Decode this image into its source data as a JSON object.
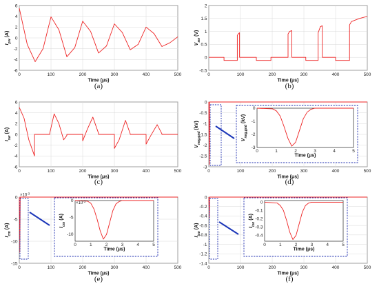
{
  "figure": {
    "panels": [
      "(a)",
      "(b)",
      "(c)",
      "(d)",
      "(e)",
      "(f)"
    ]
  },
  "colors": {
    "trace": "#ee2222",
    "inset_border": "#1f2fb0",
    "arrow": "#1a35b8"
  },
  "chart_data": [
    {
      "id": "a",
      "type": "line",
      "panel_label": "(a)",
      "xlabel": "Time (μs)",
      "ylabel": "I_pw (A)",
      "ylabel_var": "I",
      "ylabel_sub": "pw",
      "ylabel_unit": "(A)",
      "xlim": [
        0,
        500
      ],
      "ylim": [
        -6,
        6
      ],
      "xticks": [
        0,
        100,
        200,
        300,
        400,
        500
      ],
      "yticks": [
        -6,
        -4,
        -2,
        0,
        2,
        4,
        6
      ],
      "grid": true,
      "series": [
        {
          "x": [
            0,
            25,
            50,
            75,
            100,
            125,
            150,
            175,
            200,
            225,
            250,
            275,
            300,
            325,
            350,
            375,
            400,
            425,
            450,
            475,
            500
          ],
          "y": [
            5.5,
            -1.2,
            -4.4,
            -2.0,
            3.9,
            1.5,
            -3.5,
            -1.8,
            3.1,
            1.2,
            -2.8,
            -1.5,
            2.6,
            1.0,
            -2.2,
            -1.2,
            2.0,
            0.8,
            -1.6,
            -0.9,
            0.2
          ]
        }
      ]
    },
    {
      "id": "b",
      "type": "line",
      "panel_label": "(b)",
      "xlabel": "Time (μs)",
      "ylabel": "V_sw (V)",
      "ylabel_var": "V",
      "ylabel_sub": "sw",
      "ylabel_unit": "(V)",
      "xlim": [
        0,
        500
      ],
      "ylim": [
        -0.5,
        2
      ],
      "xticks": [
        0,
        100,
        200,
        300,
        400,
        500
      ],
      "yticks": [
        -0.5,
        0,
        0.5,
        1,
        1.5,
        2
      ],
      "grid": true,
      "series": [
        {
          "x": [
            0,
            48,
            48,
            90,
            90,
            94,
            97,
            97,
            150,
            150,
            196,
            196,
            250,
            250,
            255,
            262,
            262,
            306,
            306,
            345,
            345,
            352,
            358,
            358,
            400,
            400,
            444,
            444,
            450,
            475,
            500
          ],
          "y": [
            0,
            0,
            -0.12,
            -0.12,
            0.85,
            0.92,
            0.95,
            0,
            0,
            -0.12,
            -0.12,
            0,
            0,
            0.9,
            1.0,
            1.03,
            0,
            0,
            -0.12,
            -0.12,
            0.95,
            1.18,
            1.22,
            0,
            0,
            -0.12,
            -0.12,
            1.25,
            1.38,
            1.5,
            1.58
          ]
        }
      ]
    },
    {
      "id": "c",
      "type": "line",
      "panel_label": "(c)",
      "xlabel": "Time (μs)",
      "ylabel": "I_sw (A)",
      "ylabel_var": "I",
      "ylabel_sub": "sw",
      "ylabel_unit": "(A)",
      "xlim": [
        0,
        500
      ],
      "ylim": [
        -6,
        6
      ],
      "xticks": [
        0,
        100,
        200,
        300,
        400,
        500
      ],
      "yticks": [
        -6,
        -4,
        -2,
        0,
        2,
        4,
        6
      ],
      "grid": true,
      "series": [
        {
          "x": [
            0,
            15,
            30,
            48,
            48,
            96,
            96,
            110,
            125,
            140,
            150,
            150,
            200,
            200,
            215,
            232,
            250,
            250,
            300,
            300,
            315,
            335,
            350,
            350,
            400,
            400,
            415,
            435,
            450,
            450,
            500
          ],
          "y": [
            5.0,
            3.0,
            -1.0,
            -4.0,
            0,
            0,
            0.2,
            3.8,
            2.0,
            -1.0,
            -0.2,
            0,
            0,
            -1.2,
            1.0,
            3.2,
            0.2,
            0,
            0,
            -2.6,
            -1.0,
            2.6,
            0.1,
            0,
            0,
            -1.8,
            -0.2,
            1.8,
            0.1,
            0,
            0
          ]
        }
      ]
    },
    {
      "id": "d",
      "type": "line",
      "panel_label": "(d)",
      "xlabel": "Time (μs)",
      "ylabel": "V_neg,gnd (kV)",
      "ylabel_var": "V",
      "ylabel_sub": "neg,gnd",
      "ylabel_unit": "(kV)",
      "xlim": [
        0,
        500
      ],
      "ylim": [
        -3,
        0
      ],
      "xticks": [
        0,
        100,
        200,
        300,
        400,
        500
      ],
      "yticks": [
        -3,
        -2.5,
        -2,
        -1.5,
        -1,
        -0.5,
        0
      ],
      "grid": true,
      "series": [
        {
          "x": [
            0,
            1,
            1.5,
            2,
            3,
            500
          ],
          "y": [
            0,
            -2.0,
            -2.9,
            -2.0,
            0,
            0
          ]
        }
      ],
      "inset": {
        "ylabel": "V_neg,gnd (kV)",
        "ylabel_var": "V",
        "ylabel_sub": "neg,gnd",
        "ylabel_unit": "(kV)",
        "xlabel": "Time (μs)",
        "xlim": [
          0,
          5
        ],
        "ylim": [
          -3,
          0
        ],
        "xticks": [
          0,
          1,
          2,
          3,
          4,
          5
        ],
        "yticks": [
          -3,
          -2,
          -1,
          0
        ],
        "series": [
          {
            "x": [
              0,
              0.8,
              1.0,
              1.2,
              1.4,
              1.6,
              1.8,
              2.0,
              2.2,
              2.4,
              2.6,
              2.8,
              3.0,
              5.0
            ],
            "y": [
              0,
              -0.05,
              -0.2,
              -0.6,
              -1.4,
              -2.3,
              -2.9,
              -2.6,
              -1.7,
              -0.8,
              -0.3,
              -0.08,
              0,
              0
            ]
          }
        ]
      }
    },
    {
      "id": "e",
      "type": "line",
      "panel_label": "(e)",
      "xlabel": "Time (μs)",
      "ylabel": "I_cm (A)",
      "ylabel_var": "I",
      "ylabel_sub": "cm",
      "ylabel_unit": "(A)",
      "y_exponent": "×10^-3",
      "xlim": [
        0,
        500
      ],
      "ylim": [
        -15,
        0
      ],
      "xticks": [
        0,
        100,
        200,
        300,
        400,
        500
      ],
      "yticks": [
        -15,
        -10,
        -5,
        0
      ],
      "grid": true,
      "series": [
        {
          "x": [
            0,
            1,
            1.7,
            2.4,
            3,
            500
          ],
          "y": [
            0,
            -6,
            -12.5,
            -6,
            0,
            0
          ]
        }
      ],
      "inset": {
        "ylabel": "I_cm (A)",
        "ylabel_var": "I",
        "ylabel_sub": "cm",
        "ylabel_unit": "(A)",
        "y_exponent": "×10^-3",
        "xlabel": "Time (μs)",
        "xlim": [
          0,
          5
        ],
        "ylim": [
          -12,
          0
        ],
        "xticks": [
          0,
          1,
          2,
          3,
          4,
          5
        ],
        "yticks": [
          -10,
          -5,
          0
        ],
        "series": [
          {
            "x": [
              0,
              0.8,
              1.0,
              1.2,
              1.4,
              1.6,
              1.8,
              2.0,
              2.2,
              2.4,
              2.6,
              2.8,
              3.0,
              5.0
            ],
            "y": [
              0,
              -0.2,
              -0.8,
              -2.5,
              -5.5,
              -9.0,
              -11.4,
              -10.0,
              -6.5,
              -3.0,
              -1.0,
              -0.3,
              0,
              0
            ]
          }
        ]
      }
    },
    {
      "id": "f",
      "type": "line",
      "panel_label": "(f)",
      "xlabel": "Time (μs)",
      "ylabel": "I_iso (A)",
      "ylabel_var": "I",
      "ylabel_sub": "iso",
      "ylabel_unit": "(A)",
      "xlim": [
        0,
        500
      ],
      "ylim": [
        -1.4,
        0
      ],
      "xticks": [
        0,
        100,
        200,
        300,
        400,
        500
      ],
      "yticks": [
        -1.4,
        -1.2,
        -1,
        -0.8,
        -0.6,
        -0.4,
        -0.2,
        0
      ],
      "grid": true,
      "series": [
        {
          "x": [
            0,
            1,
            1.7,
            2.4,
            3,
            500
          ],
          "y": [
            0,
            -0.25,
            -0.45,
            -0.25,
            0,
            0
          ]
        }
      ],
      "inset": {
        "ylabel": "I_iso (A)",
        "ylabel_var": "I",
        "ylabel_sub": "iso",
        "ylabel_unit": "(A)",
        "xlabel": "Time (μs)",
        "xlim": [
          0,
          5
        ],
        "ylim": [
          -0.47,
          0.02
        ],
        "xticks": [
          0,
          1,
          2,
          3,
          4,
          5
        ],
        "yticks": [
          -0.4,
          -0.3,
          -0.2,
          -0.1,
          0
        ],
        "series": [
          {
            "x": [
              0,
              0.8,
              1.0,
              1.2,
              1.4,
              1.6,
              1.8,
              2.0,
              2.2,
              2.4,
              2.6,
              2.8,
              3.0,
              5.0
            ],
            "y": [
              0,
              -0.01,
              -0.04,
              -0.1,
              -0.22,
              -0.36,
              -0.45,
              -0.4,
              -0.26,
              -0.12,
              -0.04,
              -0.01,
              0,
              0
            ]
          }
        ]
      }
    }
  ]
}
